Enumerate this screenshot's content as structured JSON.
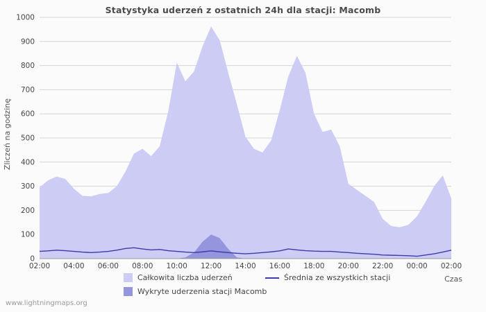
{
  "page": {
    "title": "Statystyka uderzeń z ostatnich 24h dla stacji: Macomb",
    "footer_link": "www.lightningmaps.org"
  },
  "axes": {
    "y_label": "Zliczeń na godzinę",
    "x_label": "Czas"
  },
  "colors": {
    "total_area": "#ccccf5",
    "macomb_area": "#9595dd",
    "average_line": "#3a3aa8",
    "grid": "#d4d4d4",
    "axis": "#999999"
  },
  "legend": [
    {
      "label": "Całkowita liczba uderzeń",
      "type": "area",
      "color": "#ccccf5"
    },
    {
      "label": "Średnia ze wszystkich stacji",
      "type": "line",
      "color": "#3a3aa8"
    },
    {
      "label": "Wykryte uderzenia stacji Macomb",
      "type": "area",
      "color": "#9595dd"
    }
  ],
  "chart_data": {
    "type": "area",
    "title": "Statystyka uderzeń z ostatnich 24h dla stacji: Macomb",
    "xlabel": "Czas",
    "ylabel": "Zliczeń na godzinę",
    "ylim": [
      0,
      1000
    ],
    "y_ticks": [
      0,
      100,
      200,
      300,
      400,
      500,
      600,
      700,
      800,
      900,
      1000
    ],
    "x_interval_minutes": 30,
    "x_tick_labels": [
      "02:00",
      "04:00",
      "06:00",
      "08:00",
      "10:00",
      "12:00",
      "14:00",
      "16:00",
      "18:00",
      "20:00",
      "22:00",
      "00:00",
      "02:00"
    ],
    "grid": true,
    "legend_position": "bottom",
    "series": [
      {
        "name": "Całkowita liczba uderzeń",
        "id": "total",
        "type": "area",
        "color": "#ccccf5",
        "values": [
          295,
          325,
          340,
          330,
          290,
          260,
          258,
          268,
          272,
          300,
          360,
          435,
          455,
          425,
          465,
          610,
          812,
          735,
          775,
          880,
          962,
          905,
          770,
          640,
          505,
          455,
          440,
          490,
          615,
          755,
          840,
          770,
          600,
          525,
          535,
          465,
          310,
          285,
          260,
          235,
          165,
          135,
          130,
          140,
          175,
          235,
          300,
          345,
          250
        ]
      },
      {
        "name": "Wykryte uderzenia stacji Macomb",
        "id": "macomb",
        "type": "area",
        "color": "#9595dd",
        "values": [
          0,
          0,
          0,
          0,
          0,
          0,
          0,
          0,
          0,
          0,
          0,
          0,
          0,
          0,
          0,
          0,
          0,
          5,
          25,
          70,
          100,
          85,
          40,
          5,
          0,
          0,
          0,
          0,
          0,
          0,
          0,
          0,
          0,
          0,
          0,
          0,
          0,
          0,
          0,
          0,
          0,
          0,
          0,
          0,
          0,
          0,
          0,
          0,
          0
        ]
      },
      {
        "name": "Średnia ze wszystkich stacji",
        "id": "average",
        "type": "line",
        "color": "#3a3aa8",
        "values": [
          30,
          32,
          35,
          33,
          30,
          27,
          25,
          27,
          30,
          35,
          42,
          45,
          40,
          36,
          38,
          33,
          30,
          27,
          25,
          28,
          32,
          28,
          25,
          22,
          20,
          22,
          25,
          28,
          32,
          40,
          36,
          33,
          31,
          30,
          30,
          27,
          25,
          22,
          20,
          18,
          15,
          14,
          13,
          12,
          10,
          15,
          20,
          27,
          35
        ]
      }
    ]
  }
}
